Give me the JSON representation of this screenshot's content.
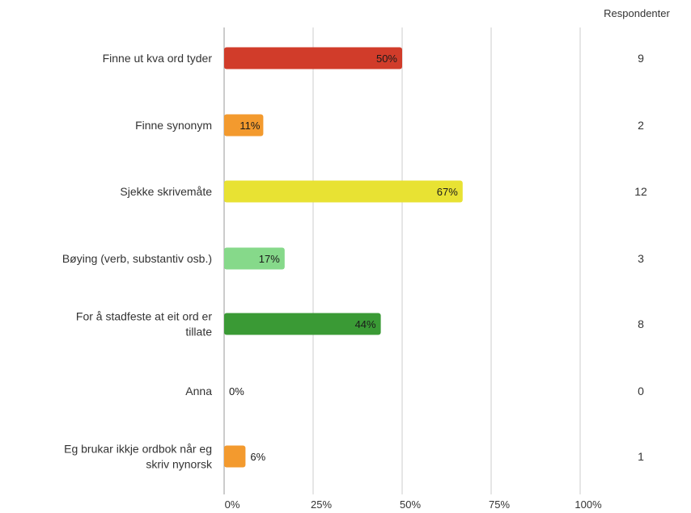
{
  "chart_data": {
    "type": "bar",
    "orientation": "horizontal",
    "categories": [
      [
        "Finne ut kva ord tyder"
      ],
      [
        "Finne synonym"
      ],
      [
        "Sjekke skrivemåte"
      ],
      [
        "Bøying (verb, substantiv osb.)"
      ],
      [
        "For å stadfeste at eit ord er",
        "tillate"
      ],
      [
        "Anna"
      ],
      [
        "Eg brukar ikkje ordbok når eg",
        "skriv nynorsk"
      ]
    ],
    "values": [
      50,
      11,
      67,
      17,
      44,
      0,
      6
    ],
    "data_labels": [
      "50%",
      "11%",
      "67%",
      "17%",
      "44%",
      "0%",
      "6%"
    ],
    "bar_colors": [
      "#d13c2a",
      "#f39a2e",
      "#e8e233",
      "#86d98a",
      "#3a9a35",
      "#d9d9d9",
      "#f39a2e"
    ],
    "respondents_header": "Respondenter",
    "respondents": [
      "9",
      "2",
      "12",
      "3",
      "8",
      "0",
      "1"
    ],
    "xlim": [
      0,
      100
    ],
    "x_ticks": [
      0,
      25,
      50,
      75,
      100
    ],
    "x_tick_labels": [
      "0%",
      "25%",
      "50%",
      "75%",
      "100%"
    ],
    "grid": true,
    "gridline_color": "#cccccc",
    "axis_color": "#999999"
  }
}
